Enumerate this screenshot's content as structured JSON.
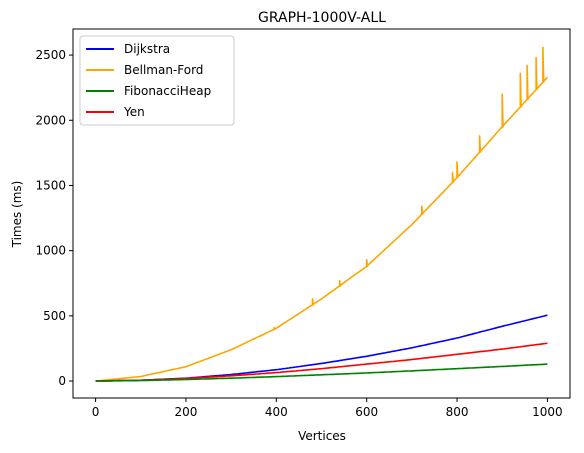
{
  "chart_data": {
    "type": "line",
    "title": "GRAPH-1000V-ALL",
    "xlabel": "Vertices",
    "ylabel": "Times (ms)",
    "xlim": [
      -50,
      1050
    ],
    "ylim": [
      -130,
      2700
    ],
    "xticks": [
      0,
      200,
      400,
      600,
      800,
      1000
    ],
    "yticks": [
      0,
      500,
      1000,
      1500,
      2000,
      2500
    ],
    "grid": false,
    "legend_position": "top-left",
    "series": [
      {
        "name": "Dijkstra",
        "color": "#0000ff",
        "x": [
          0,
          100,
          200,
          300,
          400,
          500,
          600,
          700,
          800,
          900,
          1000
        ],
        "values": [
          0,
          6,
          22,
          50,
          87,
          135,
          190,
          255,
          330,
          420,
          505
        ]
      },
      {
        "name": "Bellman-Ford",
        "color": "#ffa500",
        "x": [
          0,
          100,
          200,
          300,
          400,
          500,
          600,
          700,
          800,
          900,
          1000
        ],
        "values": [
          0,
          35,
          110,
          240,
          405,
          630,
          880,
          1200,
          1560,
          1950,
          2330
        ]
      },
      {
        "name": "FibonacciHeap",
        "color": "#008000",
        "x": [
          0,
          100,
          200,
          300,
          400,
          500,
          600,
          700,
          800,
          900,
          1000
        ],
        "values": [
          0,
          4,
          12,
          22,
          34,
          48,
          62,
          78,
          95,
          112,
          130
        ]
      },
      {
        "name": "Yen",
        "color": "#ff0000",
        "x": [
          0,
          100,
          200,
          300,
          400,
          500,
          600,
          700,
          800,
          900,
          1000
        ],
        "values": [
          0,
          6,
          20,
          40,
          65,
          95,
          130,
          165,
          205,
          245,
          290
        ]
      }
    ],
    "spikes": [
      {
        "series": "Bellman-Ford",
        "x": 395,
        "y": 410
      },
      {
        "series": "Bellman-Ford",
        "x": 480,
        "y": 630
      },
      {
        "series": "Bellman-Ford",
        "x": 540,
        "y": 770
      },
      {
        "series": "Bellman-Ford",
        "x": 600,
        "y": 930
      },
      {
        "series": "Bellman-Ford",
        "x": 722,
        "y": 1340
      },
      {
        "series": "Bellman-Ford",
        "x": 790,
        "y": 1600
      },
      {
        "series": "Bellman-Ford",
        "x": 800,
        "y": 1680
      },
      {
        "series": "Bellman-Ford",
        "x": 850,
        "y": 1880
      },
      {
        "series": "Bellman-Ford",
        "x": 900,
        "y": 2200
      },
      {
        "series": "Bellman-Ford",
        "x": 940,
        "y": 2360
      },
      {
        "series": "Bellman-Ford",
        "x": 955,
        "y": 2420
      },
      {
        "series": "Bellman-Ford",
        "x": 975,
        "y": 2480
      },
      {
        "series": "Bellman-Ford",
        "x": 990,
        "y": 2560
      }
    ]
  }
}
